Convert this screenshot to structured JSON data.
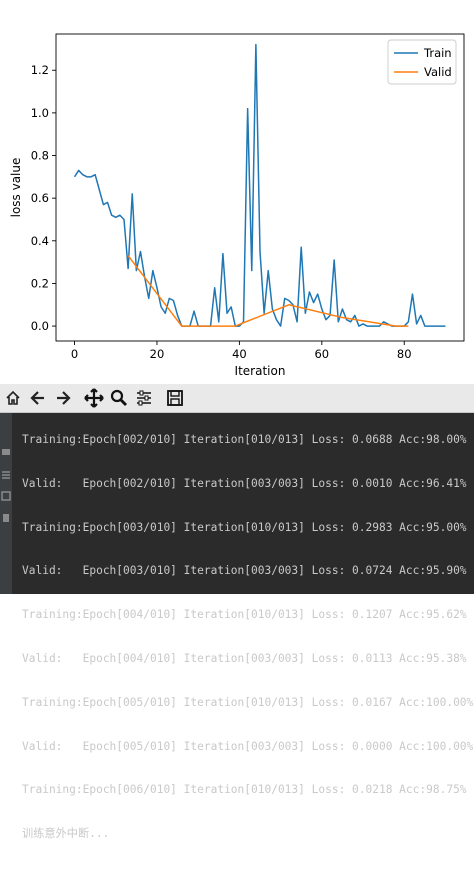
{
  "chart_data": {
    "type": "line",
    "xlabel": "Iteration",
    "ylabel": "loss value",
    "xlim": [
      -4.5,
      94.5
    ],
    "ylim": [
      -0.07,
      1.37
    ],
    "xticks": [
      0,
      20,
      40,
      60,
      80
    ],
    "yticks": [
      0.0,
      0.2,
      0.4,
      0.6,
      0.8,
      1.0,
      1.2
    ],
    "legend_position": "top-right",
    "series": [
      {
        "name": "Train",
        "color": "#1f77b4",
        "x": [
          0,
          1,
          2,
          3,
          4,
          5,
          6,
          7,
          8,
          9,
          10,
          11,
          12,
          13,
          14,
          15,
          16,
          17,
          18,
          19,
          20,
          21,
          22,
          23,
          24,
          25,
          26,
          27,
          28,
          29,
          30,
          31,
          32,
          33,
          34,
          35,
          36,
          37,
          38,
          39,
          40,
          41,
          42,
          43,
          44,
          45,
          46,
          47,
          48,
          49,
          50,
          51,
          52,
          53,
          54,
          55,
          56,
          57,
          58,
          59,
          60,
          61,
          62,
          63,
          64,
          65,
          66,
          67,
          68,
          69,
          70,
          71,
          72,
          73,
          74,
          75,
          76,
          77,
          78,
          79,
          80,
          81,
          82,
          83,
          84,
          85,
          86,
          87,
          88,
          89,
          90
        ],
        "y": [
          0.7,
          0.73,
          0.71,
          0.7,
          0.7,
          0.71,
          0.64,
          0.57,
          0.58,
          0.52,
          0.51,
          0.52,
          0.5,
          0.27,
          0.62,
          0.26,
          0.35,
          0.23,
          0.13,
          0.26,
          0.18,
          0.09,
          0.06,
          0.13,
          0.12,
          0.05,
          0.0,
          0.0,
          0.0,
          0.07,
          0.0,
          0.0,
          0.0,
          0.0,
          0.18,
          0.02,
          0.34,
          0.06,
          0.09,
          0.0,
          0.0,
          0.02,
          1.02,
          0.26,
          1.32,
          0.35,
          0.06,
          0.26,
          0.08,
          0.03,
          0.0,
          0.13,
          0.12,
          0.1,
          0.02,
          0.37,
          0.06,
          0.16,
          0.11,
          0.15,
          0.08,
          0.03,
          0.05,
          0.31,
          0.02,
          0.08,
          0.03,
          0.02,
          0.05,
          0.0,
          0.01,
          0.0,
          0.0,
          0.0,
          0.0,
          0.02,
          0.01,
          0.0,
          0.0,
          0.0,
          0.0,
          0.02,
          0.15,
          0.01,
          0.05,
          0.0,
          0.0,
          0.0,
          0.0,
          0.0,
          0.0
        ]
      },
      {
        "name": "Valid",
        "color": "#ff7f0e",
        "x": [
          13,
          26,
          39,
          52,
          65,
          78,
          81
        ],
        "y": [
          0.33,
          0.0,
          0.0,
          0.1,
          0.04,
          0.0,
          0.0
        ]
      }
    ]
  },
  "toolbar": {
    "icons": [
      "home-icon",
      "back-arrow-icon",
      "forward-arrow-icon",
      "pan-icon",
      "zoom-icon",
      "configure-subplots-icon",
      "save-icon"
    ]
  },
  "console": {
    "lines": [
      "Training:Epoch[002/010] Iteration[010/013] Loss: 0.0688 Acc:98.00%",
      "Valid:   Epoch[002/010] Iteration[003/003] Loss: 0.0010 Acc:96.41%",
      "Training:Epoch[003/010] Iteration[010/013] Loss: 0.2983 Acc:95.00%",
      "Valid:   Epoch[003/010] Iteration[003/003] Loss: 0.0724 Acc:95.90%",
      "Training:Epoch[004/010] Iteration[010/013] Loss: 0.1207 Acc:95.62%",
      "Valid:   Epoch[004/010] Iteration[003/003] Loss: 0.0113 Acc:95.38%",
      "Training:Epoch[005/010] Iteration[010/013] Loss: 0.0167 Acc:100.00%",
      "Valid:   Epoch[005/010] Iteration[003/003] Loss: 0.0000 Acc:100.00%",
      "Training:Epoch[006/010] Iteration[010/013] Loss: 0.0218 Acc:98.75%",
      "训练意外中断..."
    ]
  }
}
